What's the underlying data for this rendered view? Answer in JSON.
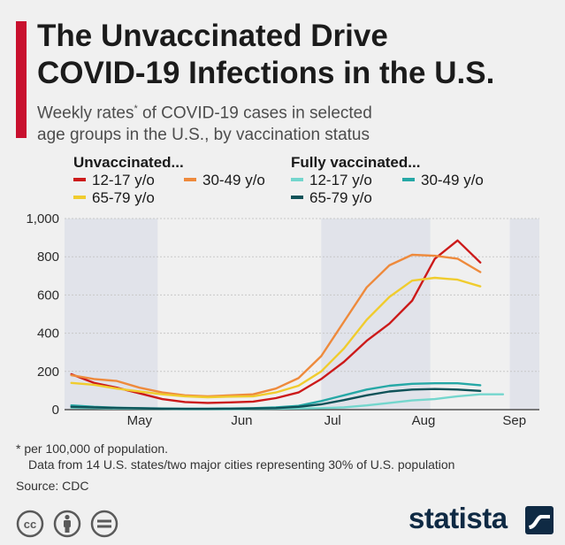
{
  "header": {
    "title_line1": "The Unvaccinated Drive",
    "title_line2": "COVID-19 Infections in the U.S.",
    "subtitle_before": "Weekly rates",
    "subtitle_mark": "*",
    "subtitle_after_line1": " of COVID-19 cases in selected",
    "subtitle_line2": "age groups in the U.S., by vaccination status"
  },
  "legend": {
    "unvaccinated_heading": "Unvaccinated...",
    "vaccinated_heading": "Fully vaccinated...",
    "items": [
      {
        "label": "12-17 y/o"
      },
      {
        "label": "30-49 y/o"
      },
      {
        "label": "65-79 y/o"
      },
      {
        "label": "12-17 y/o"
      },
      {
        "label": "30-49 y/o"
      },
      {
        "label": "65-79 y/o"
      }
    ]
  },
  "footer": {
    "note1": "* per 100,000 of population.",
    "note2": "Data from 14 U.S. states/two major cities representing 30% of U.S. population",
    "source": "Source: CDC",
    "brand": "statista"
  },
  "colors": {
    "accent": "#c8102e",
    "grid": "#c8c8c8",
    "shade": "#e1e3ea",
    "logo": "#0f2a44"
  },
  "icons": [
    "creative-commons-icon",
    "attribution-person-icon",
    "no-derivatives-equals-icon",
    "statista-logo-mark-icon"
  ],
  "chart_data": {
    "type": "line",
    "x": [
      "Apr 18",
      "Apr 25",
      "May 2",
      "May 9",
      "May 16",
      "May 23",
      "May 30",
      "Jun 6",
      "Jun 13",
      "Jun 20",
      "Jun 27",
      "Jul 4",
      "Jul 11",
      "Jul 18",
      "Jul 25",
      "Aug 1",
      "Aug 8",
      "Aug 15",
      "Aug 22",
      "Aug 29",
      "Sep 5"
    ],
    "x_tick_labels": [
      "May",
      "Jun",
      "Jul",
      "Aug",
      "Sep"
    ],
    "x_tick_index": [
      3,
      7.5,
      11.5,
      15.5,
      19.5
    ],
    "shaded_ranges": [
      [
        -0.3,
        3.8
      ],
      [
        11,
        15.8
      ],
      [
        19.3,
        20.6
      ]
    ],
    "ylim": [
      0,
      1000
    ],
    "yticks": [
      0,
      200,
      400,
      600,
      800,
      1000
    ],
    "ytick_labels": [
      "0",
      "200",
      "400",
      "600",
      "800",
      "1,000"
    ],
    "grid": true,
    "series": [
      {
        "name": "12-17 y/o",
        "group": "unvaccinated",
        "color": "#cc1a1a",
        "values": [
          185,
          140,
          115,
          85,
          55,
          40,
          35,
          38,
          42,
          60,
          90,
          160,
          250,
          360,
          450,
          570,
          790,
          885,
          770,
          null,
          null
        ]
      },
      {
        "name": "30-49 y/o",
        "group": "unvaccinated",
        "color": "#ee8a3c",
        "values": [
          180,
          160,
          150,
          115,
          90,
          75,
          70,
          75,
          80,
          110,
          165,
          280,
          460,
          640,
          755,
          810,
          805,
          790,
          720,
          null,
          null
        ]
      },
      {
        "name": "65-79 y/o",
        "group": "unvaccinated",
        "color": "#f0cc2e",
        "values": [
          140,
          130,
          110,
          95,
          80,
          70,
          65,
          68,
          70,
          90,
          125,
          200,
          320,
          470,
          590,
          675,
          690,
          680,
          645,
          null,
          null
        ]
      },
      {
        "name": "12-17 y/o",
        "group": "fully vaccinated",
        "color": "#74d6cd",
        "values": [
          10,
          8,
          6,
          5,
          4,
          3,
          3,
          3,
          4,
          5,
          6,
          8,
          12,
          22,
          35,
          48,
          55,
          70,
          80,
          80,
          null
        ]
      },
      {
        "name": "30-49 y/o",
        "group": "fully vaccinated",
        "color": "#26a8a6",
        "values": [
          22,
          15,
          10,
          8,
          6,
          5,
          5,
          6,
          8,
          12,
          20,
          45,
          75,
          105,
          125,
          135,
          138,
          138,
          128,
          null,
          null
        ]
      },
      {
        "name": "65-79 y/o",
        "group": "fully vaccinated",
        "color": "#0f5258",
        "values": [
          15,
          12,
          9,
          7,
          5,
          4,
          4,
          5,
          6,
          8,
          15,
          28,
          50,
          75,
          95,
          105,
          108,
          105,
          98,
          null,
          null
        ]
      }
    ]
  }
}
